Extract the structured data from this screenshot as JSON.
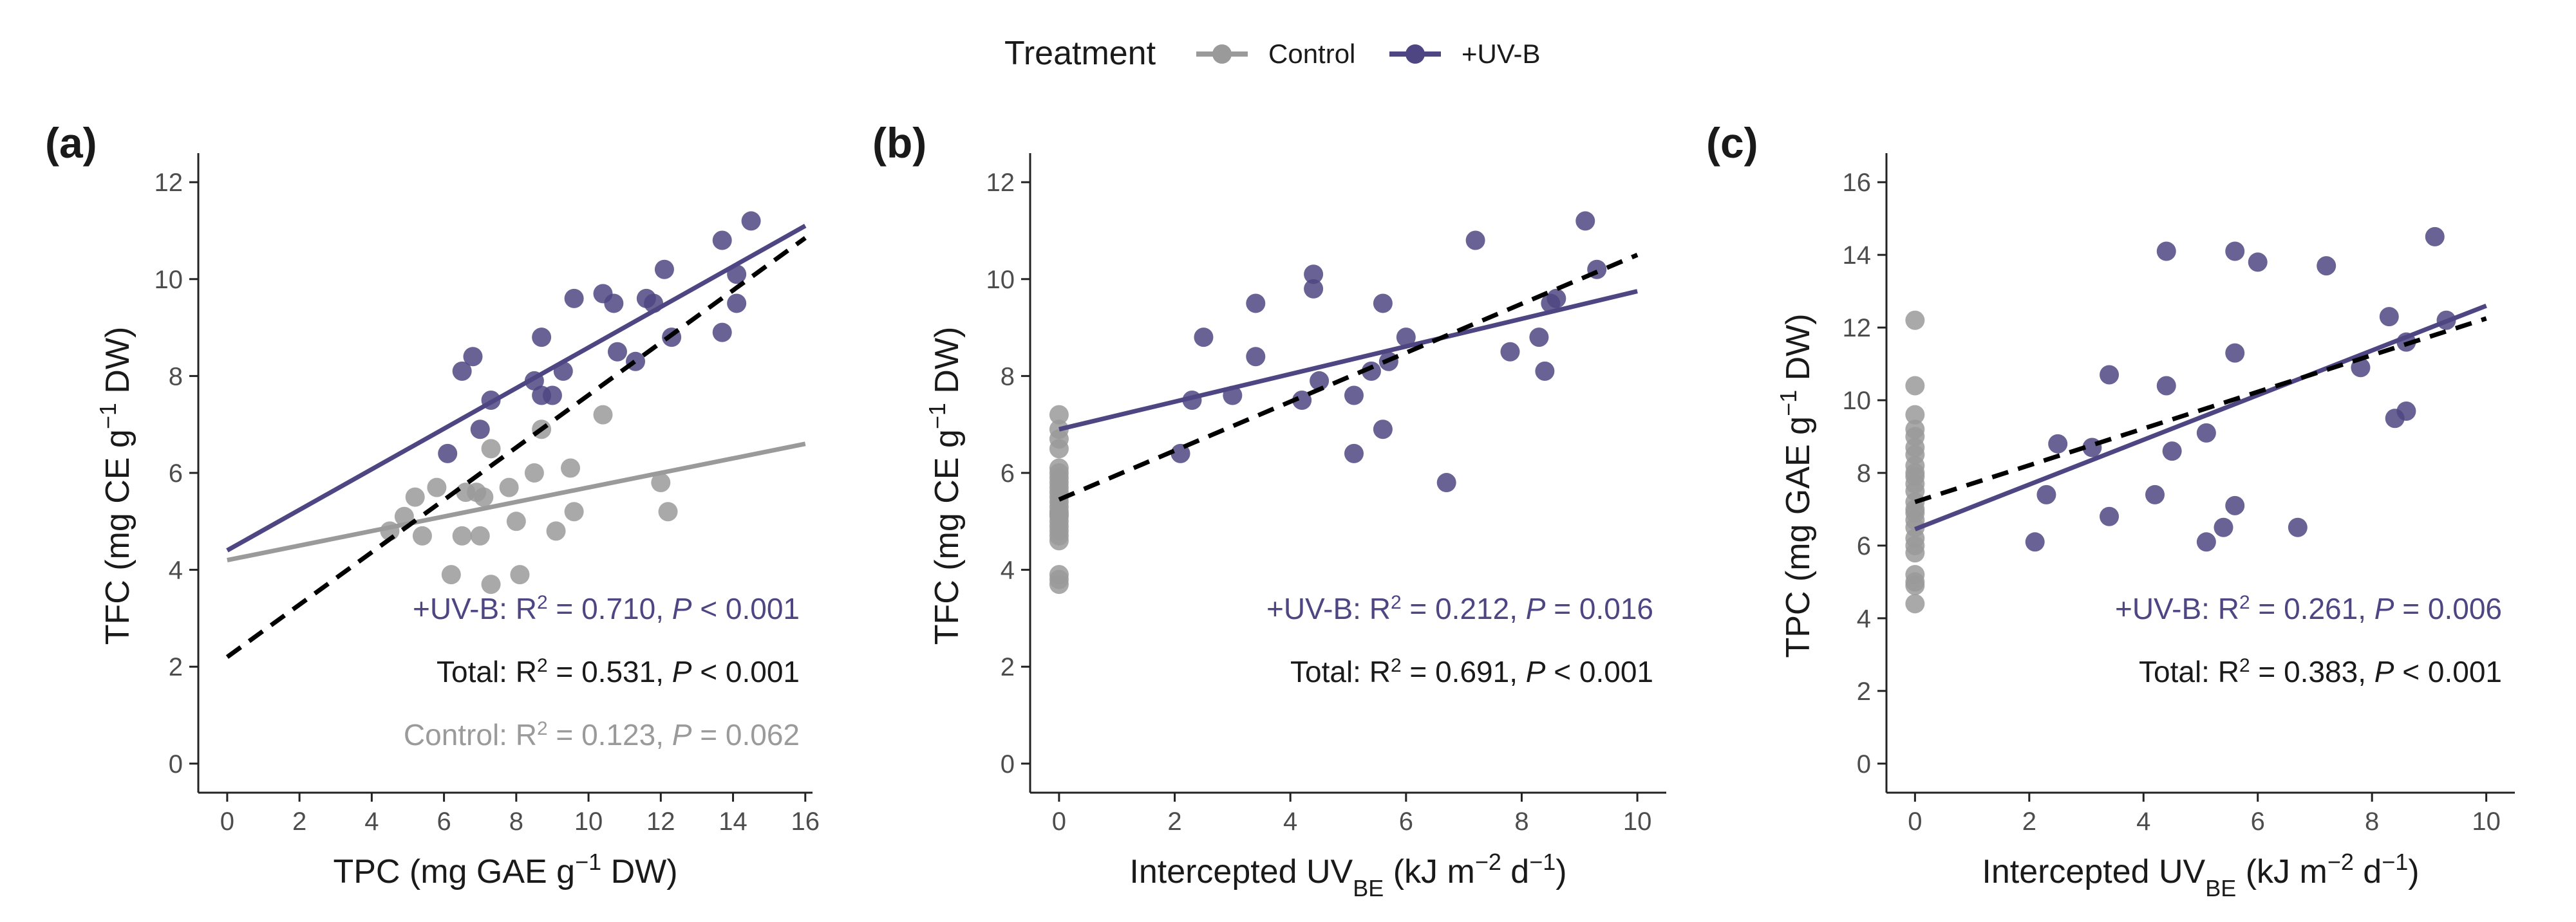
{
  "legend": {
    "title": "Treatment",
    "items": [
      {
        "label": "Control",
        "color": "#9a9a9a"
      },
      {
        "label": "+UV-B",
        "color": "#4e4682"
      }
    ]
  },
  "colors": {
    "control": "#9a9a9a",
    "uvb": "#4e4682",
    "total": "#000000"
  },
  "chart_data": [
    {
      "type": "scatter",
      "panel_label": "(a)",
      "xlabel": {
        "main": "TPC (mg GAE g",
        "sup": "−1",
        "tail": " DW)"
      },
      "ylabel": {
        "main": "TFC (mg CE g",
        "sup": "−1",
        "tail": " DW)"
      },
      "xlim": [
        -0.8,
        16.2
      ],
      "ylim": [
        -0.6,
        12.6
      ],
      "xticks": [
        0,
        2,
        4,
        6,
        8,
        10,
        12,
        14,
        16
      ],
      "yticks": [
        0,
        2,
        4,
        6,
        8,
        10,
        12
      ],
      "series": [
        {
          "name": "Control",
          "color": "#9a9a9a",
          "points": [
            [
              4.5,
              4.8
            ],
            [
              4.9,
              5.1
            ],
            [
              5.2,
              5.5
            ],
            [
              5.4,
              4.7
            ],
            [
              5.8,
              5.7
            ],
            [
              6.2,
              3.9
            ],
            [
              6.5,
              4.7
            ],
            [
              6.6,
              5.6
            ],
            [
              6.9,
              5.6
            ],
            [
              7.0,
              4.7
            ],
            [
              7.1,
              5.5
            ],
            [
              7.3,
              6.5
            ],
            [
              7.3,
              3.7
            ],
            [
              7.8,
              5.7
            ],
            [
              8.0,
              5.0
            ],
            [
              8.1,
              3.9
            ],
            [
              8.5,
              6.0
            ],
            [
              8.7,
              6.9
            ],
            [
              9.1,
              4.8
            ],
            [
              9.5,
              6.1
            ],
            [
              9.6,
              5.2
            ],
            [
              10.4,
              7.2
            ],
            [
              12.0,
              5.8
            ],
            [
              12.2,
              5.2
            ]
          ]
        },
        {
          "name": "+UV-B",
          "color": "#4e4682",
          "points": [
            [
              6.1,
              6.4
            ],
            [
              6.5,
              8.1
            ],
            [
              6.8,
              8.4
            ],
            [
              7.0,
              6.9
            ],
            [
              7.3,
              7.5
            ],
            [
              8.5,
              7.9
            ],
            [
              8.7,
              8.8
            ],
            [
              8.7,
              7.6
            ],
            [
              9.0,
              7.6
            ],
            [
              9.3,
              8.1
            ],
            [
              9.6,
              9.6
            ],
            [
              10.4,
              9.7
            ],
            [
              10.7,
              9.5
            ],
            [
              10.8,
              8.5
            ],
            [
              11.3,
              8.3
            ],
            [
              11.6,
              9.6
            ],
            [
              11.8,
              9.5
            ],
            [
              12.1,
              10.2
            ],
            [
              12.3,
              8.8
            ],
            [
              13.7,
              8.9
            ],
            [
              13.7,
              10.8
            ],
            [
              14.1,
              10.1
            ],
            [
              14.1,
              9.5
            ],
            [
              14.5,
              11.2
            ]
          ]
        }
      ],
      "fits": [
        {
          "name": "Control",
          "color": "#9a9a9a",
          "dashed": false,
          "x": [
            0,
            16
          ],
          "y": [
            4.2,
            6.6
          ]
        },
        {
          "name": "+UV-B",
          "color": "#4e4682",
          "dashed": false,
          "x": [
            0,
            16
          ],
          "y": [
            4.4,
            11.1
          ]
        },
        {
          "name": "Total",
          "color": "#000000",
          "dashed": true,
          "x": [
            0,
            16
          ],
          "y": [
            2.2,
            10.85
          ]
        }
      ],
      "annotations": [
        {
          "name": "+UV-B",
          "prefix": "+UV-B: R",
          "r2": "0.710",
          "p_op": "<",
          "p_val": "0.001",
          "color": "#4e4682"
        },
        {
          "name": "Total",
          "prefix": "Total: R",
          "r2": "0.531",
          "p_op": "<",
          "p_val": "0.001",
          "color": "#1a1a1a"
        },
        {
          "name": "Control",
          "prefix": "Control: R",
          "r2": "0.123",
          "p_op": "=",
          "p_val": "0.062",
          "color": "#9a9a9a"
        }
      ]
    },
    {
      "type": "scatter",
      "panel_label": "(b)",
      "xlabel": {
        "main": "Intercepted UV",
        "sub": "BE",
        "tail": " (kJ m",
        "sup": "−2",
        "tail2": " d",
        "sup2": "−1",
        "tail3": ")"
      },
      "ylabel": {
        "main": "TFC (mg CE g",
        "sup": "−1",
        "tail": " DW)"
      },
      "xlim": [
        -0.5,
        10.5
      ],
      "ylim": [
        -0.6,
        12.6
      ],
      "xticks": [
        0,
        2,
        4,
        6,
        8,
        10
      ],
      "yticks": [
        0,
        2,
        4,
        6,
        8,
        10,
        12
      ],
      "series": [
        {
          "name": "Control",
          "color": "#9a9a9a",
          "points": [
            [
              0,
              3.7
            ],
            [
              0,
              3.9
            ],
            [
              0,
              4.7
            ],
            [
              0,
              4.9
            ],
            [
              0,
              5.0
            ],
            [
              0,
              5.1
            ],
            [
              0,
              5.2
            ],
            [
              0,
              5.5
            ],
            [
              0,
              5.6
            ],
            [
              0,
              5.7
            ],
            [
              0,
              5.9
            ],
            [
              0,
              6.1
            ],
            [
              0,
              6.5
            ],
            [
              0,
              6.9
            ],
            [
              0,
              7.2
            ],
            [
              0,
              4.8
            ],
            [
              0,
              5.3
            ],
            [
              0,
              5.8
            ],
            [
              0,
              6.0
            ],
            [
              0,
              4.6
            ],
            [
              0,
              5.4
            ],
            [
              0,
              6.7
            ],
            [
              0,
              3.8
            ],
            [
              0,
              5.15
            ]
          ]
        },
        {
          "name": "+UV-B",
          "color": "#4e4682",
          "points": [
            [
              2.1,
              6.4
            ],
            [
              2.3,
              7.5
            ],
            [
              2.5,
              8.8
            ],
            [
              3.0,
              7.6
            ],
            [
              3.4,
              8.4
            ],
            [
              3.4,
              9.5
            ],
            [
              4.2,
              7.5
            ],
            [
              4.4,
              9.8
            ],
            [
              4.4,
              10.1
            ],
            [
              4.5,
              7.9
            ],
            [
              5.1,
              6.4
            ],
            [
              5.1,
              7.6
            ],
            [
              5.4,
              8.1
            ],
            [
              5.6,
              6.9
            ],
            [
              5.6,
              9.5
            ],
            [
              5.7,
              8.3
            ],
            [
              6.0,
              8.8
            ],
            [
              6.7,
              5.8
            ],
            [
              7.2,
              10.8
            ],
            [
              7.8,
              8.5
            ],
            [
              8.3,
              8.8
            ],
            [
              8.4,
              8.1
            ],
            [
              8.5,
              9.5
            ],
            [
              8.6,
              9.6
            ],
            [
              9.1,
              11.2
            ],
            [
              9.3,
              10.2
            ]
          ]
        }
      ],
      "fits": [
        {
          "name": "+UV-B",
          "color": "#4e4682",
          "dashed": false,
          "x": [
            0,
            10
          ],
          "y": [
            6.9,
            9.75
          ]
        },
        {
          "name": "Total",
          "color": "#000000",
          "dashed": true,
          "x": [
            0,
            10
          ],
          "y": [
            5.45,
            10.5
          ]
        }
      ],
      "annotations": [
        {
          "name": "+UV-B",
          "prefix": "+UV-B: R",
          "r2": "0.212",
          "p_op": "=",
          "p_val": "0.016",
          "color": "#4e4682"
        },
        {
          "name": "Total",
          "prefix": "Total: R",
          "r2": "0.691",
          "p_op": "<",
          "p_val": "0.001",
          "color": "#1a1a1a"
        }
      ]
    },
    {
      "type": "scatter",
      "panel_label": "(c)",
      "xlabel": {
        "main": "Intercepted UV",
        "sub": "BE",
        "tail": " (kJ m",
        "sup": "−2",
        "tail2": " d",
        "sup2": "−1",
        "tail3": ")"
      },
      "ylabel": {
        "main": "TPC (mg GAE g",
        "sup": "−1",
        "tail": " DW)"
      },
      "xlim": [
        -0.5,
        10.5
      ],
      "ylim": [
        -0.8,
        16.8
      ],
      "xticks": [
        0,
        2,
        4,
        6,
        8,
        10
      ],
      "yticks": [
        0,
        2,
        4,
        6,
        8,
        10,
        12,
        14,
        16
      ],
      "series": [
        {
          "name": "Control",
          "color": "#9a9a9a",
          "points": [
            [
              0,
              4.4
            ],
            [
              0,
              4.9
            ],
            [
              0,
              5.2
            ],
            [
              0,
              5.8
            ],
            [
              0,
              6.2
            ],
            [
              0,
              6.5
            ],
            [
              0,
              6.9
            ],
            [
              0,
              7.2
            ],
            [
              0,
              7.5
            ],
            [
              0,
              7.9
            ],
            [
              0,
              8.2
            ],
            [
              0,
              8.5
            ],
            [
              0,
              8.7
            ],
            [
              0,
              9.2
            ],
            [
              0,
              9.6
            ],
            [
              0,
              10.4
            ],
            [
              0,
              12.2
            ],
            [
              0,
              5.0
            ],
            [
              0,
              6.0
            ],
            [
              0,
              7.0
            ],
            [
              0,
              8.0
            ],
            [
              0,
              9.0
            ],
            [
              0,
              6.7
            ],
            [
              0,
              7.7
            ]
          ]
        },
        {
          "name": "+UV-B",
          "color": "#4e4682",
          "points": [
            [
              2.1,
              6.1
            ],
            [
              2.3,
              7.4
            ],
            [
              2.5,
              8.8
            ],
            [
              3.1,
              8.7
            ],
            [
              3.4,
              6.8
            ],
            [
              3.4,
              10.7
            ],
            [
              4.2,
              7.4
            ],
            [
              4.4,
              14.1
            ],
            [
              4.4,
              10.4
            ],
            [
              4.5,
              8.6
            ],
            [
              5.1,
              6.1
            ],
            [
              5.1,
              9.1
            ],
            [
              5.4,
              6.5
            ],
            [
              5.6,
              7.1
            ],
            [
              5.6,
              11.3
            ],
            [
              5.6,
              14.1
            ],
            [
              6.0,
              13.8
            ],
            [
              6.7,
              6.5
            ],
            [
              7.2,
              13.7
            ],
            [
              7.8,
              10.9
            ],
            [
              8.3,
              12.3
            ],
            [
              8.4,
              9.5
            ],
            [
              8.6,
              9.7
            ],
            [
              8.6,
              11.6
            ],
            [
              9.1,
              14.5
            ],
            [
              9.3,
              12.2
            ]
          ]
        }
      ],
      "fits": [
        {
          "name": "+UV-B",
          "color": "#4e4682",
          "dashed": false,
          "x": [
            0,
            10
          ],
          "y": [
            6.45,
            12.6
          ]
        },
        {
          "name": "Total",
          "color": "#000000",
          "dashed": true,
          "x": [
            0,
            10
          ],
          "y": [
            7.2,
            12.25
          ]
        }
      ],
      "annotations": [
        {
          "name": "+UV-B",
          "prefix": "+UV-B: R",
          "r2": "0.261",
          "p_op": "=",
          "p_val": "0.006",
          "color": "#4e4682"
        },
        {
          "name": "Total",
          "prefix": "Total: R",
          "r2": "0.383",
          "p_op": "<",
          "p_val": "0.001",
          "color": "#1a1a1a"
        }
      ]
    }
  ]
}
